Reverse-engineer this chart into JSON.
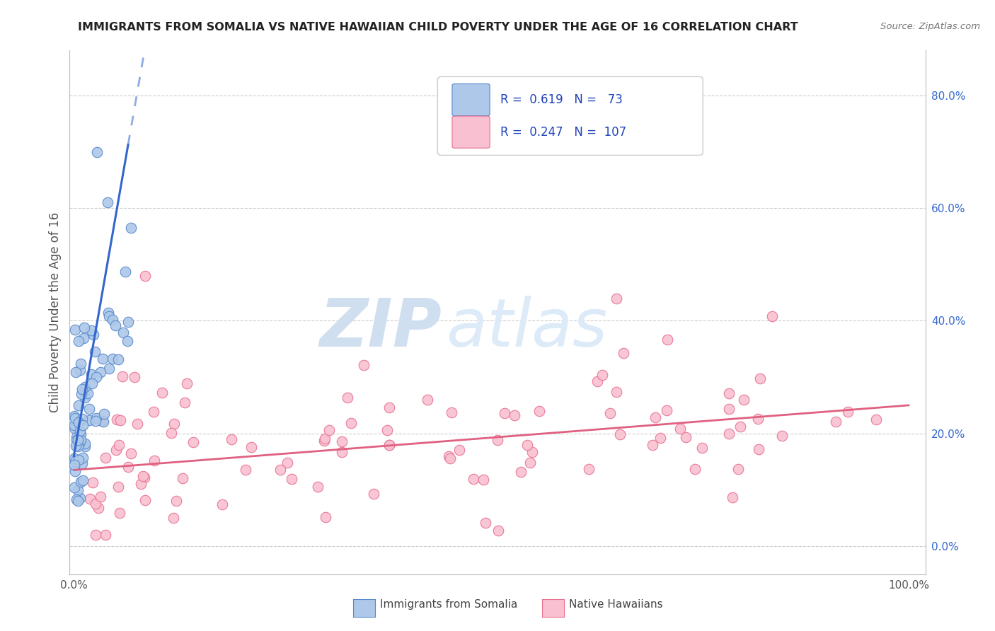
{
  "title": "IMMIGRANTS FROM SOMALIA VS NATIVE HAWAIIAN CHILD POVERTY UNDER THE AGE OF 16 CORRELATION CHART",
  "source": "Source: ZipAtlas.com",
  "ylabel": "Child Poverty Under the Age of 16",
  "right_ytick_vals": [
    0.0,
    0.2,
    0.4,
    0.6,
    0.8
  ],
  "right_ytick_labels": [
    "0.0%",
    "20.0%",
    "40.0%",
    "60.0%",
    "80.0%"
  ],
  "xlim": [
    -0.005,
    1.02
  ],
  "ylim": [
    -0.05,
    0.88
  ],
  "legend_text1": "R =  0.619   N =   73",
  "legend_text2": "R =  0.247   N =  107",
  "color_somalia_fill": "#adc8e8",
  "color_somalia_edge": "#5588cc",
  "color_hawaii_fill": "#f8c0d0",
  "color_hawaii_edge": "#e87090",
  "line_color_somalia": "#3366cc",
  "line_color_hawaii": "#e06080",
  "watermark_ZIP": "ZIP",
  "watermark_atlas": "atlas",
  "watermark_color": "#d0dff0",
  "grid_color": "#cccccc",
  "legend_box_color": "#e8e8e8",
  "title_color": "#222222",
  "source_color": "#777777",
  "axis_label_color": "#555555",
  "right_tick_color": "#3366cc"
}
